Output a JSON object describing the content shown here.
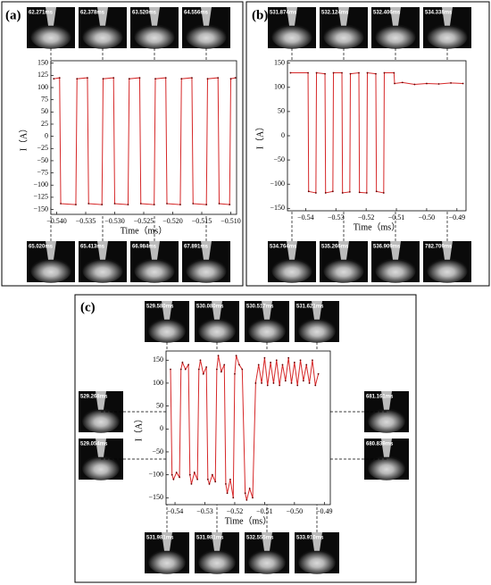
{
  "panels": [
    {
      "label": "(a)",
      "thumbnails": [
        "62.271ms",
        "62.378ms",
        "63.520ms",
        "64.556ms",
        "65.020ms",
        "65.413ms",
        "66.984ms",
        "67.891ms"
      ]
    },
    {
      "label": "(b)",
      "thumbnails": [
        "531.874ms",
        "532.124ms",
        "532.406ms",
        "534.338ms",
        "534.764ms",
        "535.266ms",
        "536.909ms",
        "782.709ms"
      ]
    },
    {
      "label": "(c)",
      "thumbnails": [
        "529.580ms",
        "530.080ms",
        "530.517ms",
        "531.621ms",
        "531.981ms",
        "531.981ms",
        "532.555ms",
        "533.910ms",
        "529.268ms",
        "529.054ms",
        "681.161ms",
        "680.839ms"
      ]
    }
  ],
  "chart_data": [
    {
      "type": "line",
      "xlabel": "Time（ms）",
      "ylabel": "I（A）",
      "color": "#d62728",
      "x": [
        -0.5405,
        -0.5395,
        -0.5393,
        -0.5367,
        -0.5365,
        -0.5347,
        -0.5345,
        -0.5322,
        -0.532,
        -0.5302,
        -0.53,
        -0.5277,
        -0.5275,
        -0.5257,
        -0.5255,
        -0.5232,
        -0.523,
        -0.5212,
        -0.521,
        -0.5187,
        -0.5185,
        -0.5167,
        -0.5165,
        -0.5142,
        -0.514,
        -0.5122,
        -0.512,
        -0.5102,
        -0.51,
        -0.5092
      ],
      "values": [
        118,
        120,
        -138,
        -140,
        118,
        120,
        -138,
        -140,
        118,
        120,
        -138,
        -140,
        118,
        120,
        -138,
        -140,
        118,
        120,
        -138,
        -140,
        118,
        120,
        -138,
        -140,
        118,
        120,
        -138,
        -140,
        118,
        120
      ],
      "xlim": [
        -0.541,
        -0.509
      ],
      "xticks": [
        {
          "value": -0.54,
          "label": "−0.540"
        },
        {
          "value": -0.535,
          "label": "−0.535"
        },
        {
          "value": -0.53,
          "label": "−0.530"
        },
        {
          "value": -0.525,
          "label": "−0.525"
        },
        {
          "value": -0.52,
          "label": "−0.520"
        },
        {
          "value": -0.515,
          "label": "−0.515"
        },
        {
          "value": -0.51,
          "label": "−0.510"
        }
      ],
      "ylim": [
        -160,
        155
      ],
      "yticks": [
        150,
        125,
        100,
        75,
        50,
        25,
        0,
        {
          "value": -25,
          "label": "−25"
        },
        {
          "value": -50,
          "label": "−50"
        },
        {
          "value": -75,
          "label": "−75"
        },
        {
          "value": -100,
          "label": "−100"
        },
        {
          "value": -125,
          "label": "−125"
        },
        {
          "value": -150,
          "label": "−150"
        }
      ]
    },
    {
      "type": "line",
      "xlabel": "Time（ms）",
      "ylabel": "I（A）",
      "color": "#d62728",
      "x": [
        -0.545,
        -0.5392,
        -0.539,
        -0.5366,
        -0.5364,
        -0.5336,
        -0.5334,
        -0.531,
        -0.5308,
        -0.528,
        -0.5278,
        -0.5254,
        -0.5252,
        -0.5224,
        -0.5222,
        -0.5198,
        -0.5196,
        -0.5168,
        -0.5166,
        -0.5142,
        -0.514,
        -0.5108,
        -0.5106,
        -0.508,
        -0.504,
        -0.5,
        -0.496,
        -0.492,
        -0.488
      ],
      "values": [
        130,
        130,
        -115,
        -118,
        130,
        128,
        -118,
        -115,
        130,
        130,
        -118,
        -116,
        128,
        130,
        -117,
        -118,
        130,
        128,
        -115,
        -118,
        130,
        130,
        108,
        110,
        106,
        108,
        107,
        109,
        108
      ],
      "xlim": [
        -0.546,
        -0.487
      ],
      "xticks": [
        {
          "value": -0.54,
          "label": "−0.54"
        },
        {
          "value": -0.53,
          "label": "−0.53"
        },
        {
          "value": -0.52,
          "label": "−0.52"
        },
        {
          "value": -0.51,
          "label": "−0.51"
        },
        {
          "value": -0.5,
          "label": "−0.50"
        },
        {
          "value": -0.49,
          "label": "−0.49"
        }
      ],
      "ylim": [
        -155,
        155
      ],
      "yticks": [
        150,
        100,
        50,
        0,
        {
          "value": -50,
          "label": "−50"
        },
        {
          "value": -100,
          "label": "−100"
        },
        {
          "value": -150,
          "label": "−150"
        }
      ]
    },
    {
      "type": "line",
      "xlabel": "Time（ms）",
      "ylabel": "I（A）",
      "color": "#d62728",
      "x": [
        -0.5415,
        -0.541,
        -0.5405,
        -0.5395,
        -0.5385,
        -0.538,
        -0.5375,
        -0.5365,
        -0.5355,
        -0.535,
        -0.5345,
        -0.5335,
        -0.5325,
        -0.532,
        -0.5315,
        -0.5305,
        -0.5295,
        -0.529,
        -0.5285,
        -0.5275,
        -0.5265,
        -0.526,
        -0.5255,
        -0.5245,
        -0.5235,
        -0.523,
        -0.5225,
        -0.5215,
        -0.5205,
        -0.52,
        -0.5195,
        -0.5185,
        -0.5175,
        -0.5165,
        -0.516,
        -0.515,
        -0.514,
        -0.513,
        -0.512,
        -0.511,
        -0.51,
        -0.509,
        -0.508,
        -0.507,
        -0.506,
        -0.505,
        -0.504,
        -0.503,
        -0.502,
        -0.501,
        -0.5,
        -0.499,
        -0.498,
        -0.497,
        -0.496,
        -0.495,
        -0.494,
        -0.493,
        -0.492
      ],
      "values": [
        130,
        -100,
        -110,
        -95,
        -105,
        130,
        145,
        130,
        140,
        -100,
        -120,
        -95,
        -110,
        130,
        150,
        120,
        135,
        -110,
        -120,
        -100,
        -115,
        130,
        160,
        125,
        140,
        -120,
        -140,
        -110,
        -150,
        120,
        160,
        140,
        130,
        -140,
        -155,
        -130,
        -150,
        100,
        140,
        100,
        155,
        95,
        145,
        100,
        150,
        95,
        140,
        105,
        155,
        100,
        145,
        95,
        150,
        105,
        140,
        100,
        150,
        95,
        120
      ],
      "xlim": [
        -0.543,
        -0.488
      ],
      "xticks": [
        {
          "value": -0.54,
          "label": "−0.54"
        },
        {
          "value": -0.53,
          "label": "−0.53"
        },
        {
          "value": -0.52,
          "label": "−0.52"
        },
        {
          "value": -0.51,
          "label": "−0.51"
        },
        {
          "value": -0.5,
          "label": "−0.50"
        },
        {
          "value": -0.49,
          "label": "−0.49"
        }
      ],
      "ylim": [
        -165,
        170
      ],
      "yticks": [
        150,
        100,
        50,
        0,
        {
          "value": -50,
          "label": "−50"
        },
        {
          "value": -100,
          "label": "−100"
        },
        {
          "value": -150,
          "label": "−150"
        }
      ]
    }
  ]
}
